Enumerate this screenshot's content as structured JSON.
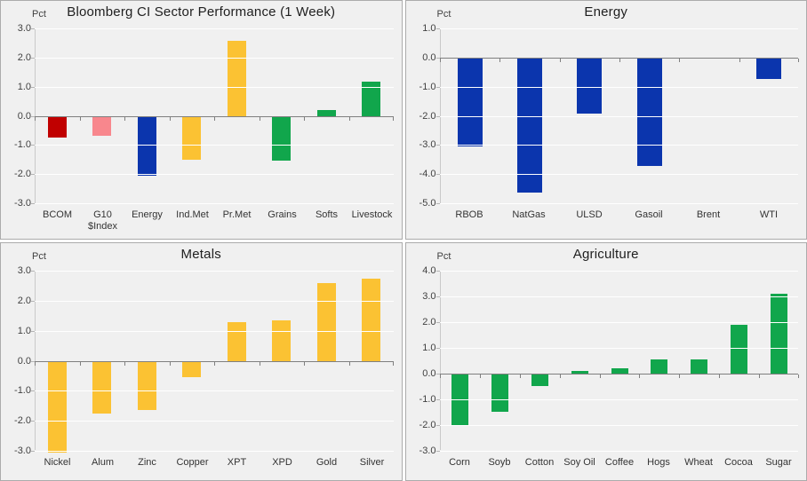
{
  "colors": {
    "dark_red": "#C00000",
    "pink": "#F8878D",
    "blue": "#0B35AD",
    "yellow": "#FBC233",
    "green": "#11A64C",
    "panel_background": "#F0F0F0",
    "gridline": "#FFFFFF",
    "zero_axis": "#7F7F7F",
    "panel_border": "#ABABAB"
  },
  "chart_data": [
    {
      "type": "bar",
      "title": "Bloomberg CI Sector Performance (1 Week)",
      "ylabel": "Pct",
      "ylim": [
        -3.0,
        3.0
      ],
      "ytick_step": 1.0,
      "grid": true,
      "categories": [
        "BCOM",
        "G10\n$Index",
        "Energy",
        "Ind.Met",
        "Pr.Met",
        "Grains",
        "Softs",
        "Livestock"
      ],
      "values": [
        -0.7,
        -0.65,
        -2.0,
        -1.45,
        2.6,
        -1.5,
        0.2,
        1.2
      ],
      "bar_colors": [
        "#C00000",
        "#F8878D",
        "#0B35AD",
        "#FBC233",
        "#FBC233",
        "#11A64C",
        "#11A64C",
        "#11A64C"
      ]
    },
    {
      "type": "bar",
      "title": "Energy",
      "ylabel": "Pct",
      "ylim": [
        -5.0,
        1.0
      ],
      "ytick_step": 1.0,
      "grid": true,
      "categories": [
        "RBOB",
        "NatGas",
        "ULSD",
        "Gasoil",
        "Brent",
        "WTI"
      ],
      "values": [
        -3.0,
        -4.6,
        -1.9,
        -3.7,
        0.0,
        -0.7
      ],
      "bar_colors": [
        "#0B35AD",
        "#0B35AD",
        "#0B35AD",
        "#0B35AD",
        "#0B35AD",
        "#0B35AD"
      ]
    },
    {
      "type": "bar",
      "title": "Metals",
      "ylabel": "Pct",
      "ylim": [
        -3.0,
        3.0
      ],
      "ytick_step": 1.0,
      "grid": true,
      "categories": [
        "Nickel",
        "Alum",
        "Zinc",
        "Copper",
        "XPT",
        "XPD",
        "Gold",
        "Silver"
      ],
      "values": [
        -3.0,
        -1.7,
        -1.6,
        -0.5,
        1.3,
        1.35,
        2.6,
        2.75
      ],
      "bar_colors": [
        "#FBC233",
        "#FBC233",
        "#FBC233",
        "#FBC233",
        "#FBC233",
        "#FBC233",
        "#FBC233",
        "#FBC233"
      ]
    },
    {
      "type": "bar",
      "title": "Agriculture",
      "ylabel": "Pct",
      "ylim": [
        -3.0,
        4.0
      ],
      "ytick_step": 1.0,
      "grid": true,
      "categories": [
        "Corn",
        "Soyb",
        "Cotton",
        "Soy Oil",
        "Coffee",
        "Hogs",
        "Wheat",
        "Cocoa",
        "Sugar"
      ],
      "values": [
        -2.0,
        -1.45,
        -0.45,
        0.1,
        0.2,
        0.55,
        0.55,
        1.9,
        3.1
      ],
      "bar_colors": [
        "#11A64C",
        "#11A64C",
        "#11A64C",
        "#11A64C",
        "#11A64C",
        "#11A64C",
        "#11A64C",
        "#11A64C",
        "#11A64C"
      ]
    }
  ]
}
